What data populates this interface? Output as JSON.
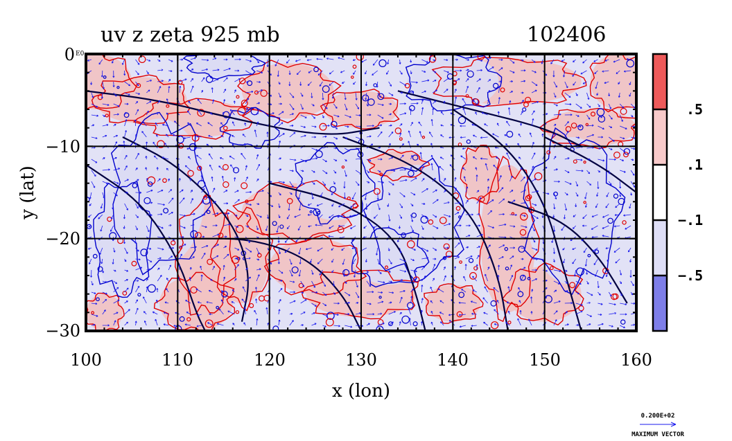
{
  "chart_data": {
    "type": "heatmap",
    "title": "uv z zeta 925 mb",
    "timestamp": "102406",
    "xlabel": "x (lon)",
    "ylabel": "y (lat)",
    "xlim": [
      100,
      160
    ],
    "ylim": [
      -30,
      0
    ],
    "x_ticks": [
      100,
      110,
      120,
      130,
      140,
      150,
      160
    ],
    "x_tick_labels": [
      "100",
      "110",
      "120",
      "130",
      "140",
      "150",
      "160"
    ],
    "y_ticks": [
      0,
      -10,
      -20,
      -30
    ],
    "y_tick_labels": [
      "0",
      "−10",
      "−20",
      "−30"
    ],
    "y_zero_suffix": "E0",
    "grid": true,
    "colorbar": {
      "levels_labels": [
        ".5",
        ".1",
        "−.1",
        "−.5"
      ],
      "level_values": [
        0.5,
        0.1,
        -0.1,
        -0.5
      ],
      "colors": [
        "#ee5555",
        "#f8c8c8",
        "#ffffff",
        "#dcdcf6",
        "#7c7ce6"
      ]
    },
    "fields": {
      "vorticity_positive_color": "#f2c2c2",
      "vorticity_negative_color": "#dcdcf4",
      "vorticity_contour_pos": "#e00000",
      "vorticity_contour_neg": "#0000cc",
      "geopotential_contour": "#000040",
      "wind_vector_color": "#1a1aee"
    },
    "max_vector": {
      "value": "0.200E+02",
      "label": "MAXIMUM VECTOR"
    }
  }
}
